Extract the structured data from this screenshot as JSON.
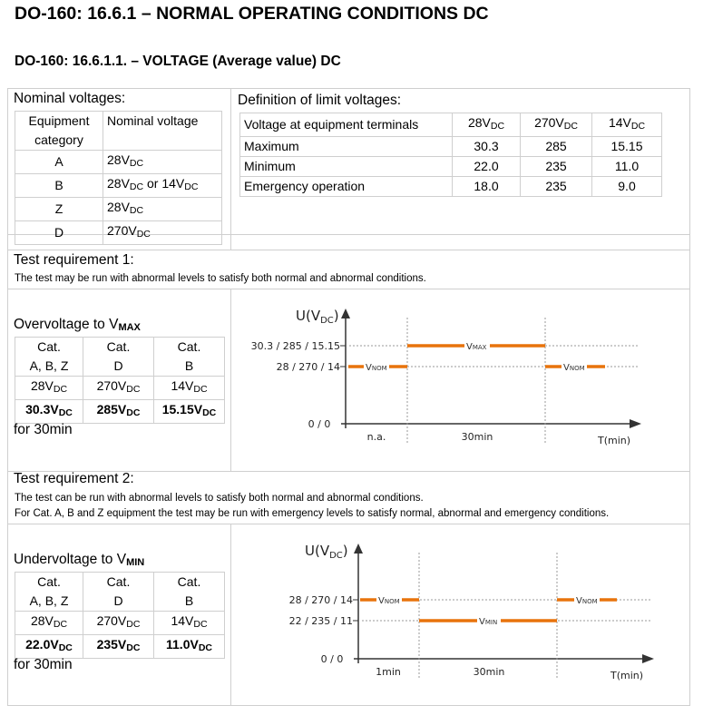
{
  "title": "DO-160: 16.6.1 – NORMAL OPERATING CONDITIONS DC",
  "subtitle": "DO-160: 16.6.1.1. – VOLTAGE (Average value) DC",
  "nominal": {
    "heading": "Nominal voltages:",
    "col1_line1": "Equipment",
    "col1_line2": "category",
    "col2": "Nominal voltage",
    "rows": [
      {
        "cat": "A",
        "v1": "28V",
        "v1s": "DC",
        "mid": "",
        "v2": "",
        "v2s": ""
      },
      {
        "cat": "B",
        "v1": "28V",
        "v1s": "DC",
        "mid": " or ",
        "v2": "14V",
        "v2s": "DC"
      },
      {
        "cat": "Z",
        "v1": "28V",
        "v1s": "DC",
        "mid": "",
        "v2": "",
        "v2s": ""
      },
      {
        "cat": "D",
        "v1": "270V",
        "v1s": "DC",
        "mid": "",
        "v2": "",
        "v2s": ""
      }
    ]
  },
  "limits": {
    "heading": "Definition of limit voltages:",
    "corner": "Voltage at equipment terminals",
    "cols": [
      {
        "v": "28V",
        "s": "DC"
      },
      {
        "v": "270V",
        "s": "DC"
      },
      {
        "v": "14V",
        "s": "DC"
      }
    ],
    "rows": [
      {
        "label": "Maximum",
        "a": "30.3",
        "b": "285",
        "c": "15.15"
      },
      {
        "label": "Minimum",
        "a": "22.0",
        "b": "235",
        "c": "11.0"
      },
      {
        "label": "Emergency operation",
        "a": "18.0",
        "b": "235",
        "c": "9.0"
      }
    ]
  },
  "req1": {
    "heading": "Test requirement 1:",
    "note": "The test may be run with abnormal levels to satisfy both normal and abnormal conditions."
  },
  "over": {
    "heading_prefix": "Overvoltage to V",
    "heading_sub": "MAX",
    "cat_label": "Cat.",
    "cats": [
      "A, B, Z",
      "D",
      "B"
    ],
    "nominal": [
      {
        "v": "28V",
        "s": "DC"
      },
      {
        "v": "270V",
        "s": "DC"
      },
      {
        "v": "14V",
        "s": "DC"
      }
    ],
    "limits": [
      {
        "v": "30.3V",
        "s": "DC"
      },
      {
        "v": "285V",
        "s": "DC"
      },
      {
        "v": "15.15V",
        "s": "DC"
      }
    ],
    "duration": "for 30min"
  },
  "chart1": {
    "y_label": "U(V",
    "y_label_sub": "DC",
    "y_label_end": ")",
    "high_label": "30.3 / 285 / 15.15",
    "nom_label": "28 / 270 / 14",
    "origin": "0 / 0",
    "nom_text": "V",
    "nom_text_sub": "NOM",
    "lim_text": "V",
    "lim_text_sub": "MAX",
    "seg1": "n.a.",
    "seg2": "30min",
    "x_label": "T(min)"
  },
  "req2": {
    "heading": "Test requirement 2:",
    "note1": "The test can be run with abnormal levels to satisfy both normal and abnormal conditions.",
    "note2": "For Cat. A, B and Z equipment the test may be run with emergency levels to satisfy normal, abnormal and emergency conditions."
  },
  "under": {
    "heading_prefix": "Undervoltage to V",
    "heading_sub": "MIN",
    "cat_label": "Cat.",
    "cats": [
      "A, B, Z",
      "D",
      "B"
    ],
    "nominal": [
      {
        "v": "28V",
        "s": "DC"
      },
      {
        "v": "270V",
        "s": "DC"
      },
      {
        "v": "14V",
        "s": "DC"
      }
    ],
    "limits": [
      {
        "v": "22.0V",
        "s": "DC"
      },
      {
        "v": "235V",
        "s": "DC"
      },
      {
        "v": "11.0V",
        "s": "DC"
      }
    ],
    "duration": "for 30min"
  },
  "chart2": {
    "y_label": "U(V",
    "y_label_sub": "DC",
    "y_label_end": ")",
    "nom_label": "28 / 270 / 14",
    "low_label": "22 / 235 / 11",
    "origin": "0 / 0",
    "nom_text": "V",
    "nom_text_sub": "NOM",
    "lim_text": "V",
    "lim_text_sub": "MIN",
    "seg1": "1min",
    "seg2": "30min",
    "x_label": "T(min)"
  },
  "colors": {
    "accent": "#e8730c",
    "frame": "#cfcfcf",
    "dashed": "#9a9a9a"
  }
}
